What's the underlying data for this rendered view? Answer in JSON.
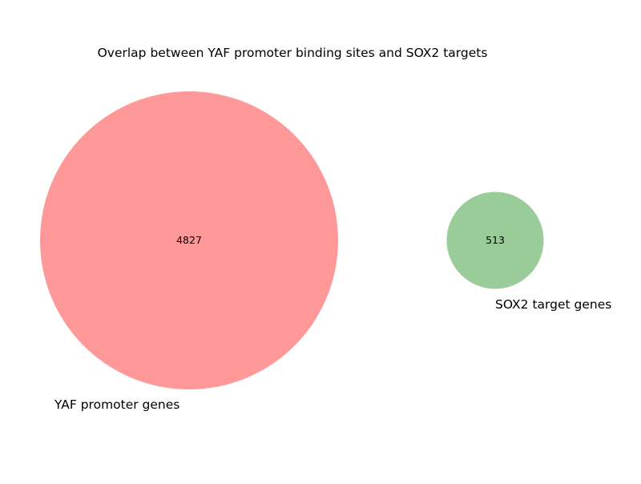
{
  "figure": {
    "title": "Overlap between YAF promoter binding sites and SOX2 targets",
    "type": "venn2"
  },
  "chart_data": {
    "type": "venn",
    "title": "Overlap between YAF promoter binding sites and SOX2 targets",
    "sets": [
      {
        "name": "YAF promoter genes",
        "only_count": 4827,
        "color": "#ff9999"
      },
      {
        "name": "SOX2 target genes",
        "only_count": 513,
        "color": "#99cc99"
      }
    ],
    "overlap_count": 0
  },
  "labels": {
    "set_a": "YAF promoter genes",
    "set_b": "SOX2 target genes",
    "count_a": "4827",
    "count_b": "513"
  },
  "colors": {
    "set_a": "#ff9999",
    "set_b": "#99cc99",
    "background": "#ffffff"
  }
}
